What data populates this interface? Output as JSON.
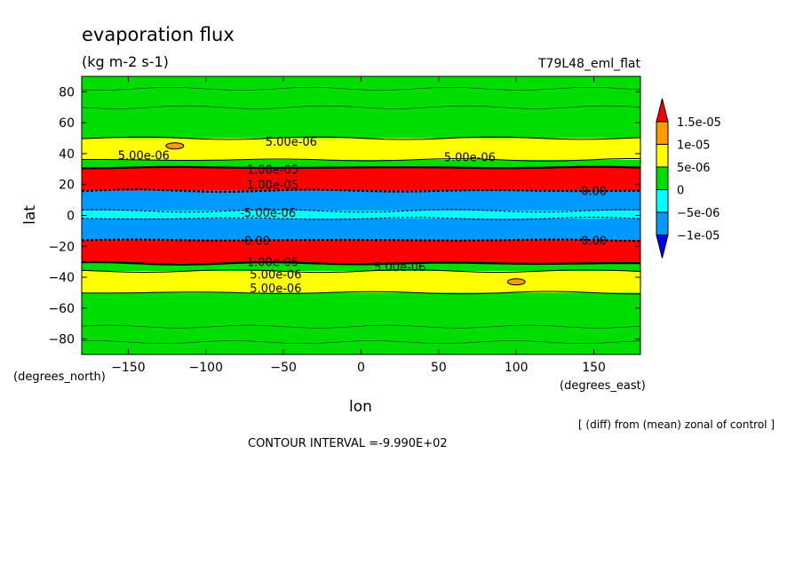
{
  "chart_data": {
    "type": "heatmap",
    "title": "evaporation flux",
    "units": "(kg m-2 s-1)",
    "run_name": "T79L48_eml_flat",
    "xlabel": "lon",
    "ylabel": "lat",
    "x_units": "(degrees_east)",
    "y_units": "(degrees_north)",
    "xlim": [
      -180,
      180
    ],
    "ylim": [
      -90,
      90
    ],
    "x_ticks": [
      -150,
      -100,
      -50,
      0,
      50,
      100,
      150
    ],
    "y_ticks": [
      -80,
      -60,
      -40,
      -20,
      0,
      20,
      40,
      60,
      80
    ],
    "legend": {
      "placement": "right",
      "labels": [
        "1.5e-05",
        "1e-05",
        "5e-06",
        "0",
        "-5e-06",
        "-1e-05"
      ],
      "colors": [
        "#ff0000",
        "#ff9900",
        "#ffff00",
        "#00dd00",
        "#00ffff",
        "#0099ff",
        "#0000ff"
      ]
    },
    "bands": [
      {
        "lat_from": 90,
        "lat_to": 50,
        "value_range": "0 to 5e-06",
        "color": "#00dd00"
      },
      {
        "lat_from": 50,
        "lat_to": 36,
        "value_range": "5e-06 to 1e-05",
        "color": "#ffff00"
      },
      {
        "lat_from": 36,
        "lat_to": 31,
        "value_range": "0 to 5e-06",
        "color": "#00dd00"
      },
      {
        "lat_from": 31,
        "lat_to": 16,
        "value_range": "above 1.5e-05",
        "color": "#ff0000"
      },
      {
        "lat_from": 16,
        "lat_to": 3,
        "value_range": "-1e-05 to -5e-06",
        "color": "#0099ff"
      },
      {
        "lat_from": 3,
        "lat_to": -2,
        "value_range": "-5e-06 to 0",
        "color": "#00ffff"
      },
      {
        "lat_from": -2,
        "lat_to": -16,
        "value_range": "-1e-05 to -5e-06",
        "color": "#0099ff"
      },
      {
        "lat_from": -16,
        "lat_to": -31,
        "value_range": "above 1.5e-05",
        "color": "#ff0000"
      },
      {
        "lat_from": -31,
        "lat_to": -36,
        "value_range": "0 to 5e-06",
        "color": "#00dd00"
      },
      {
        "lat_from": -36,
        "lat_to": -50,
        "value_range": "5e-06 to 1e-05",
        "color": "#ffff00"
      },
      {
        "lat_from": -50,
        "lat_to": -90,
        "value_range": "0 to 5e-06",
        "color": "#00dd00"
      }
    ],
    "contour_labels": [
      {
        "text": "5.00e-06",
        "lon": -45,
        "lat": 48
      },
      {
        "text": "5.00e-06",
        "lon": -140,
        "lat": 39
      },
      {
        "text": "5.00e-06",
        "lon": 70,
        "lat": 38
      },
      {
        "text": "1.00e-05",
        "lon": -57,
        "lat": 30
      },
      {
        "text": "1.00e-05",
        "lon": -57,
        "lat": 20
      },
      {
        "text": "0.00",
        "lon": 150,
        "lat": 16
      },
      {
        "text": "-5.00e-06",
        "lon": -60,
        "lat": 2
      },
      {
        "text": "0.00",
        "lon": -67,
        "lat": -16
      },
      {
        "text": "0.00",
        "lon": 150,
        "lat": -16
      },
      {
        "text": "1.00e-05",
        "lon": -57,
        "lat": -30
      },
      {
        "text": "5.00e-06",
        "lon": 25,
        "lat": -33
      },
      {
        "text": "5.00e-06",
        "lon": -55,
        "lat": -38
      },
      {
        "text": "5.00e-06",
        "lon": -55,
        "lat": -47
      }
    ],
    "local_maxima": [
      {
        "lon": -120,
        "lat": 45,
        "value_range": "above 1e-05",
        "color": "#ff9900"
      },
      {
        "lon": 100,
        "lat": -43,
        "value_range": "above 1e-05",
        "color": "#ff9900"
      }
    ],
    "grid": false
  },
  "annotations": {
    "diff_note": "[ (diff) from (mean) zonal of control ]",
    "contour_interval": "CONTOUR INTERVAL =-9.990E+02"
  }
}
